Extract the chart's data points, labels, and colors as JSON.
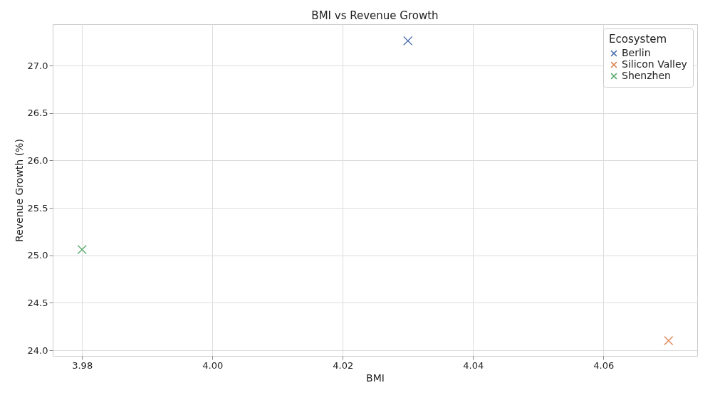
{
  "chart_data": {
    "type": "scatter",
    "title": "BMI vs Revenue Growth",
    "xlabel": "BMI",
    "ylabel": "Revenue Growth (%)",
    "legend_title": "Ecosystem",
    "series": [
      {
        "name": "Berlin",
        "color": "#4c72b0",
        "x": [
          4.03
        ],
        "values": [
          27.26
        ]
      },
      {
        "name": "Silicon Valley",
        "color": "#dd8452",
        "x": [
          4.07
        ],
        "values": [
          24.1
        ]
      },
      {
        "name": "Shenzhen",
        "color": "#55a868",
        "x": [
          3.98
        ],
        "values": [
          25.06
        ]
      }
    ],
    "xlim": [
      3.9755,
      4.0744
    ],
    "xticks": [
      3.98,
      {
        "value": 4,
        "label": "4.00"
      },
      4.02,
      4.04,
      4.06
    ],
    "ylim": [
      23.94,
      27.435
    ],
    "yticks": [
      {
        "value": 24,
        "label": "24.0"
      },
      24.5,
      {
        "value": 25,
        "label": "25.0"
      },
      25.5,
      {
        "value": 26,
        "label": "26.0"
      },
      26.5,
      {
        "value": 27,
        "label": "27.0"
      }
    ],
    "grid": true,
    "legend": "top right",
    "marker": "cross"
  }
}
